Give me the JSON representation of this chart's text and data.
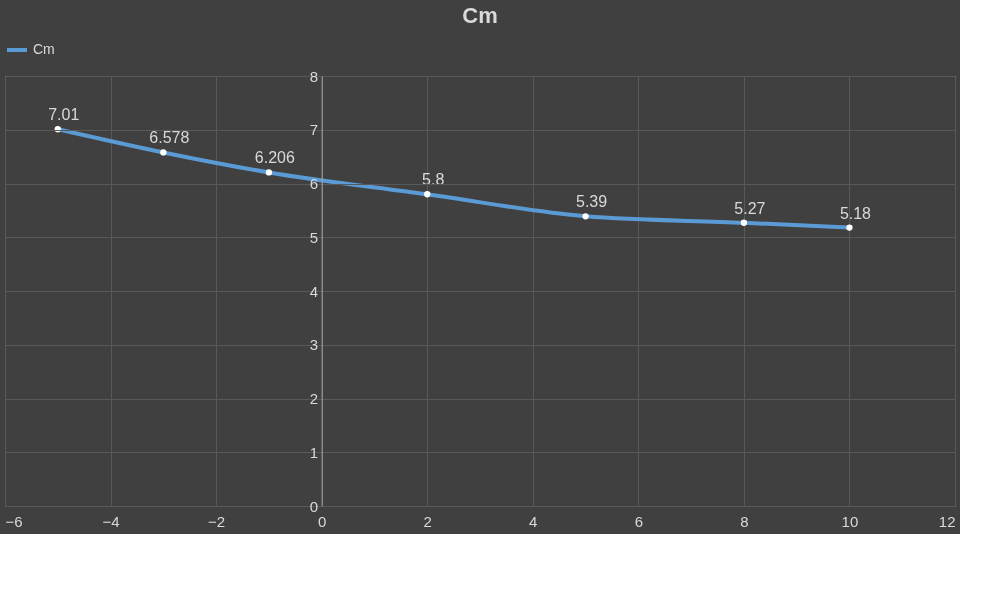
{
  "chart_data": {
    "type": "line",
    "title": "Cm",
    "x": [
      -5,
      -3,
      -1,
      2,
      5,
      8,
      10
    ],
    "series": [
      {
        "name": "Cm",
        "color": "#5b9bd5",
        "values": [
          7.01,
          6.578,
          6.206,
          5.8,
          5.39,
          5.27,
          5.18
        ]
      }
    ],
    "xlim": [
      -6,
      12
    ],
    "xticks": [
      -6,
      -4,
      -2,
      0,
      2,
      4,
      6,
      8,
      10,
      12
    ],
    "ylim": [
      0,
      8
    ],
    "yticks": [
      0,
      1,
      2,
      3,
      4,
      5,
      6,
      7,
      8
    ],
    "grid": true,
    "legend": "top",
    "marker": "circle",
    "line_style": "solid",
    "data_labels": true
  }
}
